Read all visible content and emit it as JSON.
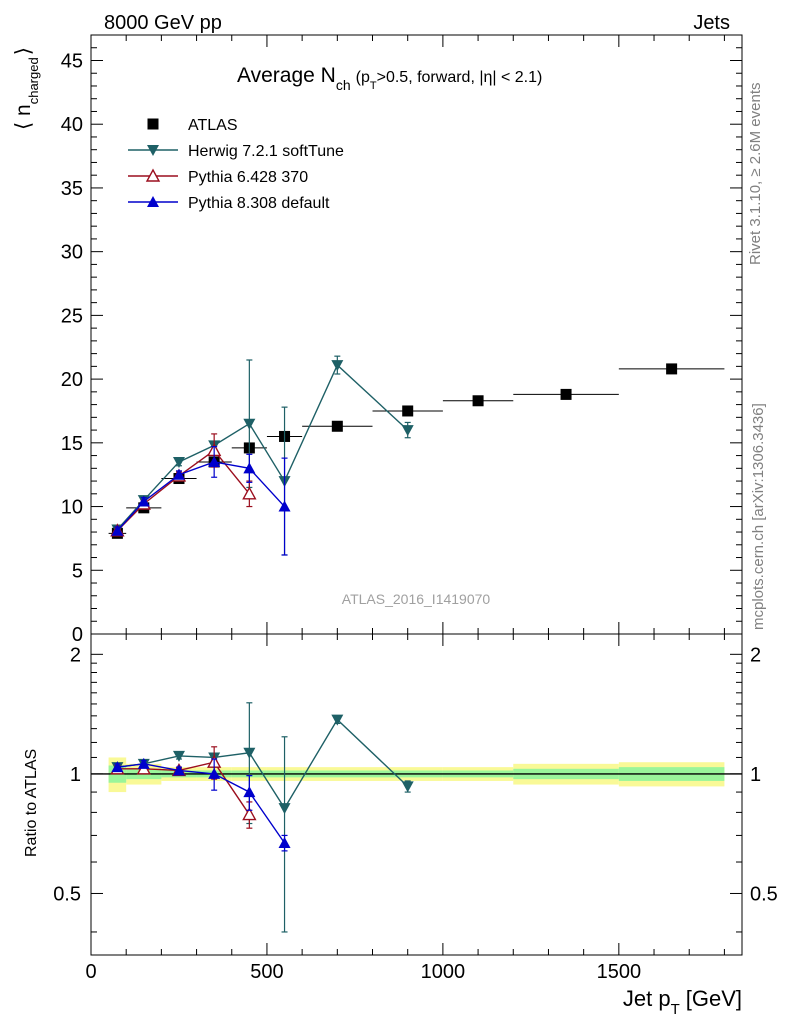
{
  "header": {
    "left": "8000 GeV pp",
    "right": "Jets"
  },
  "side_text": {
    "rivet": "Rivet 3.1.10, ≥ 2.6M events",
    "mcplots": "mcplots.cern.ch [arXiv:1306.3436]"
  },
  "watermark": "ATLAS_2016_I1419070",
  "chart_data": [
    {
      "panel": "main",
      "type": "scatter",
      "title": "Average N",
      "title_sub": "ch",
      "title_suffix": "(p",
      "title_suffix_sub": "T",
      "title_suffix_tail": ">0.5, forward, |η| < 2.1)",
      "ylabel": "⟨ n",
      "ylabel_sub": "charged",
      "ylabel_close": "⟩",
      "xlim": [
        0,
        1850
      ],
      "ylim": [
        0,
        47
      ],
      "yticks": [
        0,
        5,
        10,
        15,
        20,
        25,
        30,
        35,
        40,
        45
      ],
      "legend_position": "top-left",
      "series": [
        {
          "name": "ATLAS",
          "color": "#000000",
          "marker": "square",
          "x": [
            75,
            150,
            250,
            350,
            450,
            550,
            700,
            900,
            1100,
            1350,
            1650
          ],
          "y": [
            7.9,
            9.9,
            12.2,
            13.5,
            14.6,
            15.5,
            16.3,
            17.5,
            18.3,
            18.8,
            20.8
          ],
          "xerr": [
            25,
            50,
            50,
            50,
            50,
            50,
            100,
            100,
            100,
            150,
            150
          ]
        },
        {
          "name": "Herwig 7.2.1 softTune",
          "color": "#1e6066",
          "marker": "triangle-down",
          "line": true,
          "x": [
            75,
            150,
            250,
            350,
            450,
            550,
            700,
            900
          ],
          "y": [
            8.2,
            10.5,
            13.5,
            14.8,
            16.5,
            12.0,
            21.1,
            16.0
          ],
          "yerr": [
            0.3,
            0.3,
            0.3,
            0.3,
            5.0,
            5.8,
            0.7,
            0.6
          ]
        },
        {
          "name": "Pythia 6.428 370",
          "color": "#9b0e1e",
          "marker": "triangle-up-open",
          "line": true,
          "x": [
            75,
            150,
            250,
            350,
            450
          ],
          "y": [
            8.1,
            10.2,
            12.4,
            14.4,
            11.0
          ],
          "yerr": [
            0.3,
            0.3,
            0.3,
            1.3,
            1.0
          ]
        },
        {
          "name": "Pythia 8.308 default",
          "color": "#0000cc",
          "marker": "triangle-up",
          "line": true,
          "x": [
            75,
            150,
            250,
            350,
            450,
            550
          ],
          "y": [
            8.1,
            10.4,
            12.5,
            13.5,
            13.0,
            10.0
          ],
          "yerr": [
            0.3,
            0.3,
            0.3,
            1.2,
            1.1,
            3.8
          ]
        }
      ]
    },
    {
      "panel": "ratio",
      "type": "scatter",
      "ylabel": "Ratio to ATLAS",
      "xlabel": "Jet p",
      "xlabel_sub": "T",
      "xlabel_unit": "[GeV]",
      "xlim": [
        0,
        1850
      ],
      "xticks": [
        0,
        500,
        1000,
        1500
      ],
      "ylim": [
        0.35,
        2.25
      ],
      "ylog": true,
      "yticks": [
        0.5,
        1,
        2
      ],
      "uncertainty_bands": {
        "inner_color": "#9af59a",
        "outer_color": "#f9f997",
        "x_low": [
          50,
          100,
          200,
          300,
          400,
          500,
          600,
          800,
          1000,
          1200,
          1500
        ],
        "x_high": [
          100,
          200,
          300,
          400,
          500,
          600,
          800,
          1000,
          1200,
          1500,
          1800
        ],
        "inner": [
          0.05,
          0.03,
          0.02,
          0.02,
          0.02,
          0.02,
          0.02,
          0.02,
          0.02,
          0.03,
          0.04
        ],
        "outer": [
          0.1,
          0.06,
          0.04,
          0.04,
          0.04,
          0.04,
          0.04,
          0.04,
          0.04,
          0.06,
          0.07
        ]
      },
      "series": [
        {
          "name": "Herwig 7.2.1 softTune",
          "color": "#1e6066",
          "marker": "triangle-down",
          "line": true,
          "x": [
            75,
            150,
            250,
            350,
            450,
            550,
            700,
            900
          ],
          "y": [
            1.04,
            1.06,
            1.11,
            1.1,
            1.13,
            0.82,
            1.37,
            0.93
          ],
          "yerr": [
            0.02,
            0.02,
            0.02,
            0.02,
            0.38,
            0.42,
            0.03,
            0.03
          ]
        },
        {
          "name": "Pythia 6.428 370",
          "color": "#9b0e1e",
          "marker": "triangle-up-open",
          "line": true,
          "x": [
            75,
            150,
            250,
            350,
            450
          ],
          "y": [
            1.03,
            1.03,
            1.02,
            1.07,
            0.79
          ],
          "yerr": [
            0.02,
            0.02,
            0.02,
            0.1,
            0.06
          ]
        },
        {
          "name": "Pythia 8.308 default",
          "color": "#0000cc",
          "marker": "triangle-up",
          "line": true,
          "x": [
            75,
            150,
            250,
            350,
            450,
            550
          ],
          "y": [
            1.04,
            1.06,
            1.02,
            1.0,
            0.9,
            0.67
          ],
          "yerr": [
            0.02,
            0.02,
            0.02,
            0.09,
            0.09,
            0.03
          ]
        }
      ]
    }
  ]
}
